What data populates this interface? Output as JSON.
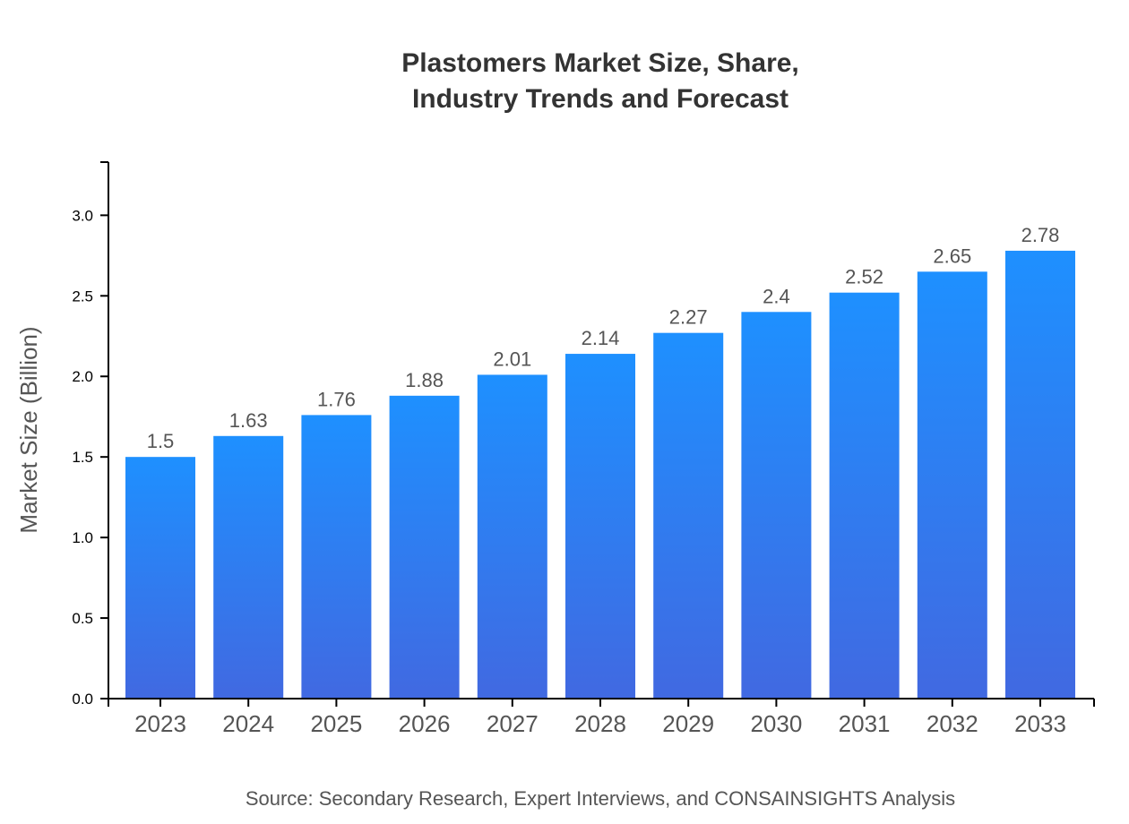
{
  "chart_data": {
    "type": "bar",
    "title_lines": [
      "Plastomers Market Size, Share,",
      "Industry Trends and Forecast"
    ],
    "categories": [
      "2023",
      "2024",
      "2025",
      "2026",
      "2027",
      "2028",
      "2029",
      "2030",
      "2031",
      "2032",
      "2033"
    ],
    "values": [
      1.5,
      1.63,
      1.76,
      1.88,
      2.01,
      2.14,
      2.27,
      2.4,
      2.52,
      2.65,
      2.78
    ],
    "data_labels": [
      "1.5",
      "1.63",
      "1.76",
      "1.88",
      "2.01",
      "2.14",
      "2.27",
      "2.4",
      "2.52",
      "2.65",
      "2.78"
    ],
    "xlabel": "",
    "ylabel": "Market Size (Billion)",
    "ylim": [
      0,
      3.33
    ],
    "yticks": [
      "0.0",
      "0.5",
      "1.0",
      "1.5",
      "2.0",
      "2.5",
      "3.0"
    ],
    "grid": false,
    "bar_gradient": {
      "top": "#1e90ff",
      "bottom": "#4169e1"
    },
    "source": "Source: Secondary Research, Expert Interviews, and CONSAINSIGHTS Analysis"
  }
}
